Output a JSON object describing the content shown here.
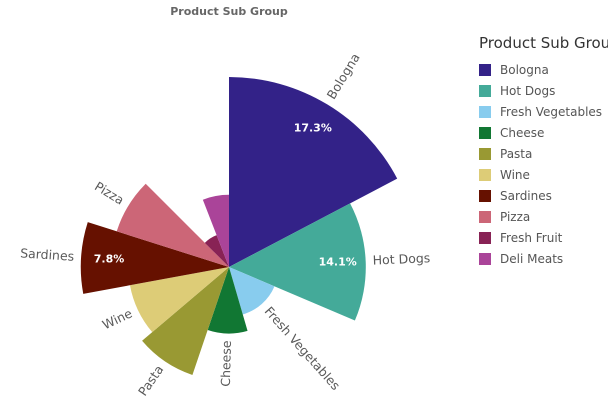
{
  "chart_data": {
    "type": "pie",
    "variant": "polar-area (slice angle = share, slice radius = second measure)",
    "title": "Product Sub Group",
    "legend": {
      "title": "Product Sub Group",
      "position": "right"
    },
    "categories": [
      "Bologna",
      "Hot Dogs",
      "Fresh Vegetables",
      "Cheese",
      "Pasta",
      "Wine",
      "Sardines",
      "Pizza",
      "Fresh Fruit",
      "Deli Meats"
    ],
    "values": [
      17.3,
      14.1,
      14.1,
      9.7,
      8.6,
      8.3,
      7.8,
      7.6,
      6.6,
      5.9
    ],
    "radius_values": [
      100,
      72,
      26,
      35,
      60,
      53,
      78,
      62,
      18,
      38
    ],
    "data_labels": [
      "17.3%",
      "14.1%",
      "",
      "",
      "",
      "",
      "7.8%",
      "",
      "",
      ""
    ],
    "slice_labels_shown": [
      true,
      true,
      true,
      true,
      true,
      true,
      true,
      true,
      false,
      false
    ],
    "colors": [
      "#332288",
      "#44aa99",
      "#88ccee",
      "#117733",
      "#999933",
      "#ddcc77",
      "#661100",
      "#cc6677",
      "#882255",
      "#aa4499"
    ]
  }
}
